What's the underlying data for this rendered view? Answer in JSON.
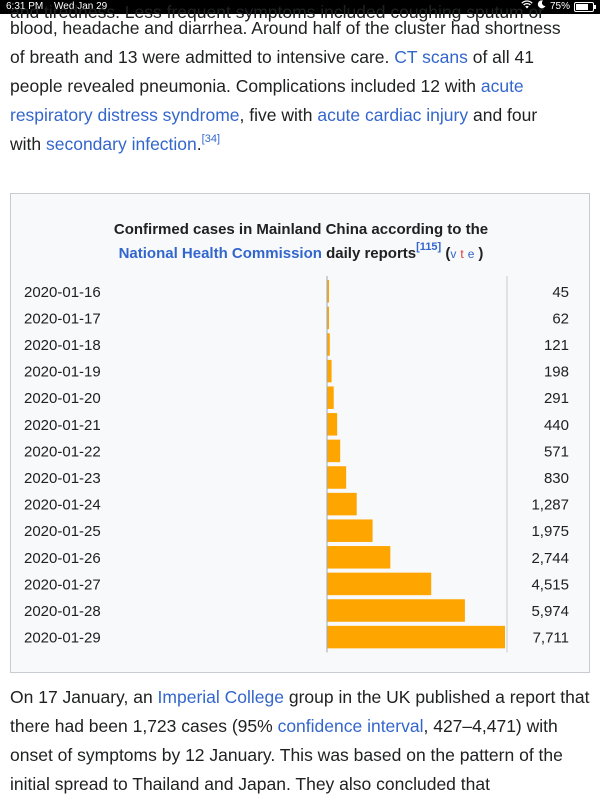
{
  "status_bar": {
    "time": "6:31 PM",
    "date": "Wed Jan 29",
    "battery": "75%",
    "battery_fraction": 0.75
  },
  "top_paragraph": {
    "line0": "and tiredness. Less frequent symptoms included coughing sputum or",
    "line1": "blood, headache and diarrhea. Around half of the cluster had shortness",
    "line2_a": "of breath and 13 were admitted to intensive care. ",
    "line2_link": "CT scans",
    "line2_b": " of all 41",
    "line3_a": "people revealed pneumonia. Complications included 12 with ",
    "line3_link": "acute",
    "line4_link": "respiratory distress syndrome",
    "line4_b": ", five with ",
    "line4_link2": "acute cardiac injury",
    "line4_c": " and four",
    "line5_a": "with ",
    "line5_link": "secondary infection",
    "line5_b": ".",
    "line5_ref": "[34]"
  },
  "chart_title": {
    "line1": "Confirmed cases in Mainland China according to the",
    "link": "National Health Commission",
    "line2_b": " daily reports",
    "ref": "[115]",
    "open_paren": " (",
    "v": "v",
    "t": "t",
    "e": "e",
    "close_paren": ")"
  },
  "chart_data": {
    "type": "bar",
    "orientation": "horizontal",
    "title": "Confirmed cases in Mainland China according to the National Health Commission daily reports",
    "categories": [
      "2020-01-16",
      "2020-01-17",
      "2020-01-18",
      "2020-01-19",
      "2020-01-20",
      "2020-01-21",
      "2020-01-22",
      "2020-01-23",
      "2020-01-24",
      "2020-01-25",
      "2020-01-26",
      "2020-01-27",
      "2020-01-28",
      "2020-01-29"
    ],
    "values": [
      45,
      62,
      121,
      198,
      291,
      440,
      571,
      830,
      1287,
      1975,
      2744,
      4515,
      5974,
      7711
    ],
    "labels": [
      "45",
      "62",
      "121",
      "198",
      "291",
      "440",
      "571",
      "830",
      "1,287",
      "1,975",
      "2,744",
      "4,515",
      "5,974",
      "7,711"
    ],
    "xlim": [
      0,
      7711
    ],
    "bar_color": "#ffa500"
  },
  "bottom_paragraph": {
    "line1_a": "On 17 January, an ",
    "line1_link": "Imperial College",
    "line1_b": " group in the UK published a report",
    "line2_a": "that there had been 1,723 cases (95% ",
    "line2_link": "confidence interval",
    "line2_b": ", 427–4,471)",
    "line3": "with onset of symptoms by 12 January. This was based on the pattern",
    "line4": "of the initial spread to Thailand and Japan. They also concluded that"
  }
}
